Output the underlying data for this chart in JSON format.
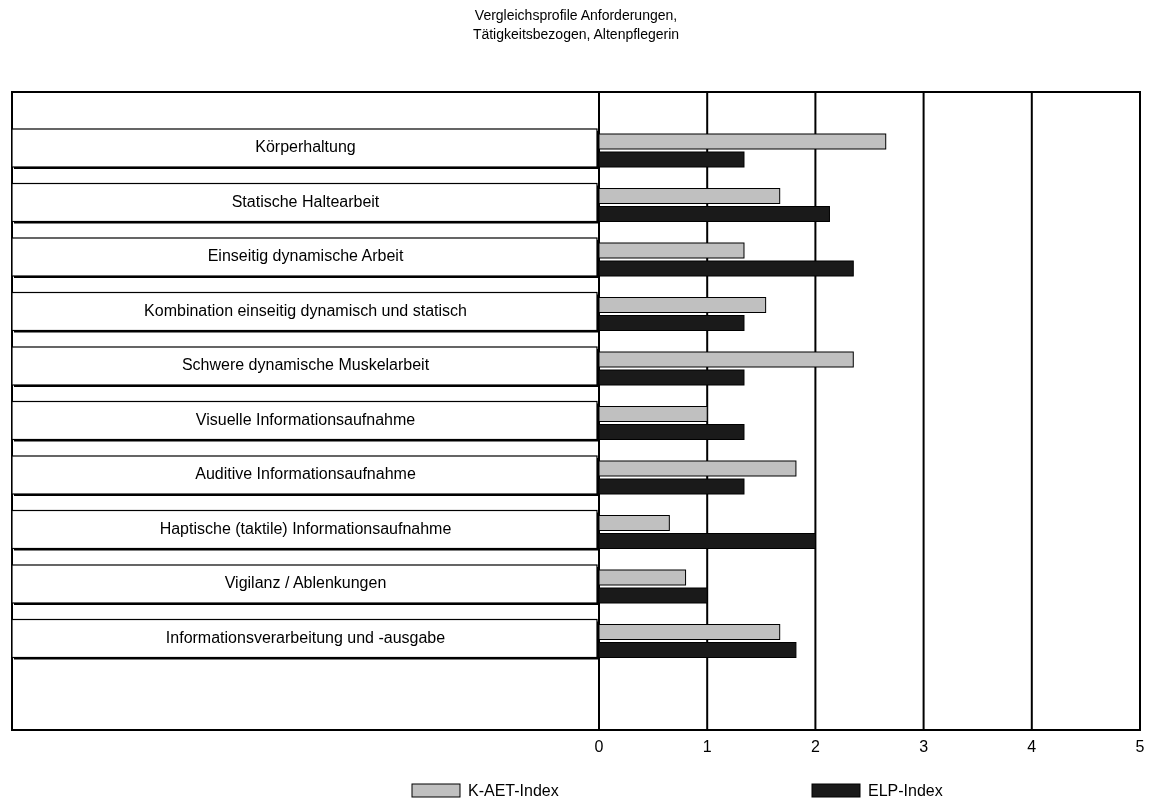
{
  "chart_data": {
    "type": "bar",
    "orientation": "horizontal",
    "title": "Vergleichsprofile Anforderungen,\nTätigkeitsbezogen, Altenpflegerin",
    "categories": [
      "Körperhaltung",
      "Statische Haltearbeit",
      "Einseitig dynamische Arbeit",
      "Kombination einseitig dynamisch und statisch",
      "Schwere dynamische Muskelarbeit",
      "Visuelle Informationsaufnahme",
      "Auditive Informationsaufnahme",
      "Haptische (taktile) Informationsaufnahme",
      "Vigilanz / Ablenkungen",
      "Informationsverarbeitung und -ausgabe"
    ],
    "series": [
      {
        "name": "K-AET-Index",
        "color": "#c0c0c0",
        "values": [
          2.65,
          1.67,
          1.34,
          1.54,
          2.35,
          1.0,
          1.82,
          0.65,
          0.8,
          1.67
        ]
      },
      {
        "name": "ELP-Index",
        "color": "#1a1a1a",
        "values": [
          1.34,
          2.13,
          2.35,
          1.34,
          1.34,
          1.34,
          1.34,
          2.0,
          1.0,
          1.82
        ]
      }
    ],
    "xlim": [
      0,
      5
    ],
    "xticks": [
      0,
      1,
      2,
      3,
      4,
      5
    ],
    "grid": "x",
    "legend": "bottom"
  }
}
